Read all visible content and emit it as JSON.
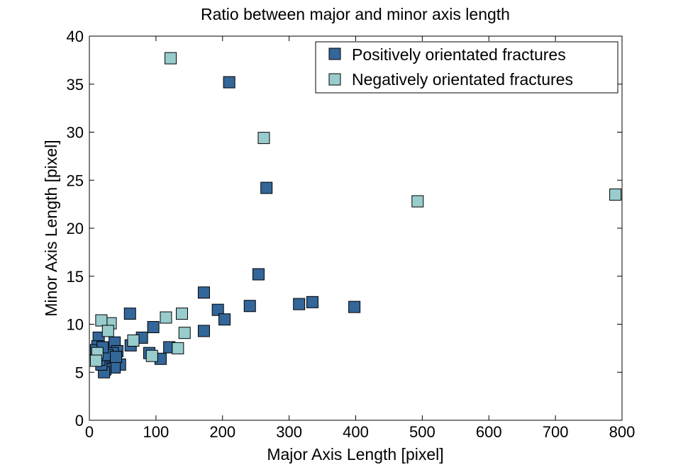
{
  "chart_data": {
    "type": "scatter",
    "title": "Ratio between major and minor axis length",
    "xlabel": "Major Axis Length [pixel]",
    "ylabel": "Minor Axis Length [pixel]",
    "xlim": [
      0,
      800
    ],
    "ylim": [
      0,
      40
    ],
    "xticks": [
      0,
      100,
      200,
      300,
      400,
      500,
      600,
      700,
      800
    ],
    "yticks": [
      0,
      5,
      10,
      15,
      20,
      25,
      30,
      35,
      40
    ],
    "grid": false,
    "legend": "top-right",
    "series": [
      {
        "name": "Positively orientated fractures",
        "color": "#336699",
        "marker": "square",
        "points": [
          [
            210,
            35.2
          ],
          [
            266,
            24.2
          ],
          [
            254,
            15.2
          ],
          [
            172,
            13.3
          ],
          [
            193,
            11.5
          ],
          [
            203,
            10.5
          ],
          [
            241,
            11.9
          ],
          [
            315,
            12.1
          ],
          [
            335,
            12.3
          ],
          [
            398,
            11.8
          ],
          [
            172,
            9.3
          ],
          [
            61,
            11.1
          ],
          [
            96,
            9.7
          ],
          [
            79,
            8.6
          ],
          [
            62,
            7.8
          ],
          [
            90,
            7.0
          ],
          [
            107,
            6.4
          ],
          [
            120,
            7.6
          ],
          [
            14,
            8.6
          ],
          [
            38,
            8.1
          ],
          [
            42,
            7.2
          ],
          [
            35,
            7.0
          ],
          [
            30,
            6.5
          ],
          [
            46,
            5.8
          ],
          [
            38,
            5.5
          ],
          [
            24,
            5.3
          ],
          [
            22,
            5.0
          ],
          [
            18,
            5.8
          ],
          [
            12,
            7.7
          ],
          [
            10,
            7.3
          ],
          [
            15,
            6.3
          ],
          [
            27,
            6.8
          ],
          [
            40,
            6.6
          ],
          [
            20,
            7.6
          ]
        ]
      },
      {
        "name": "Negatively orientated fractures",
        "color": "#99cccc",
        "marker": "square",
        "points": [
          [
            122,
            37.7
          ],
          [
            262,
            29.4
          ],
          [
            493,
            22.8
          ],
          [
            790,
            23.5
          ],
          [
            139,
            11.1
          ],
          [
            115,
            10.7
          ],
          [
            143,
            9.1
          ],
          [
            133,
            7.5
          ],
          [
            94,
            6.7
          ],
          [
            66,
            8.3
          ],
          [
            32,
            10.1
          ],
          [
            18,
            10.4
          ],
          [
            28,
            9.3
          ],
          [
            12,
            7.0
          ],
          [
            10,
            6.2
          ]
        ]
      }
    ]
  }
}
